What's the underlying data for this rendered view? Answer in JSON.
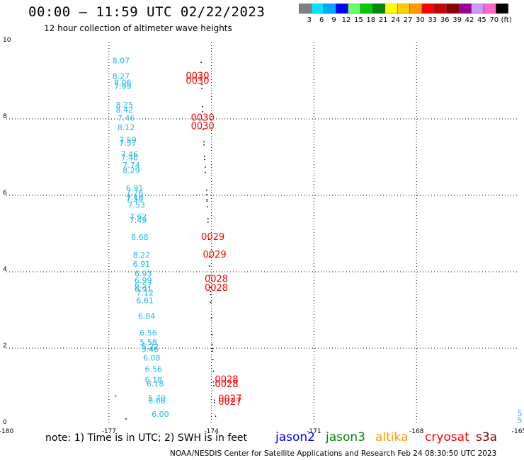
{
  "title": "00:00 – 11:59 UTC 02/22/2023",
  "subtitle": "12 hour collection of altimeter wave heights",
  "colorbar": {
    "ticks": [
      "3",
      "6",
      "9",
      "12",
      "15",
      "18",
      "21",
      "24",
      "27",
      "30",
      "33",
      "36",
      "39",
      "42",
      "45",
      "70",
      "(ft)"
    ],
    "colors": [
      "#808080",
      "#00e5ff",
      "#00aaff",
      "#0000ff",
      "#66ff66",
      "#00cc00",
      "#008800",
      "#ffff00",
      "#ffcc00",
      "#ff9900",
      "#ff0000",
      "#cc0000",
      "#880000",
      "#990099",
      "#cc99ff",
      "#ff66cc",
      "#000000"
    ]
  },
  "note": "note: 1) Time is in UTC; 2) SWH is in feet",
  "satellites": [
    {
      "name": "jason2",
      "color": "#0000ff"
    },
    {
      "name": "jason3",
      "color": "#008800"
    },
    {
      "name": "altika",
      "color": "#ff9900"
    },
    {
      "name": "cryosat",
      "color": "#ff0000"
    },
    {
      "name": "s3a",
      "color": "#880000"
    }
  ],
  "credit": "NOAA/NESDIS Center for Satellite Applications and Research   Feb 24 08:30:50 UTC 2023",
  "chart_data": {
    "type": "scatter",
    "xlim": [
      -180,
      -165
    ],
    "ylim": [
      0,
      10
    ],
    "x_ticks": [
      "-180",
      "-177",
      "-174",
      "-171",
      "-168",
      "-165"
    ],
    "y_ticks": [
      "0",
      "2",
      "4",
      "6",
      "8",
      "10"
    ],
    "grid": true,
    "wave_height_labels": [
      {
        "text": "8.07",
        "x": -176.9,
        "y": 9.45
      },
      {
        "text": "8.27",
        "x": -176.9,
        "y": 9.05
      },
      {
        "text": "8.06",
        "x": -176.85,
        "y": 8.88
      },
      {
        "text": "7.99",
        "x": -176.85,
        "y": 8.78
      },
      {
        "text": "8.25",
        "x": -176.8,
        "y": 8.3
      },
      {
        "text": "8.42",
        "x": -176.8,
        "y": 8.17
      },
      {
        "text": "7.46",
        "x": -176.75,
        "y": 7.95
      },
      {
        "text": "8.12",
        "x": -176.75,
        "y": 7.7
      },
      {
        "text": "7.59",
        "x": -176.7,
        "y": 7.38
      },
      {
        "text": "7.57",
        "x": -176.7,
        "y": 7.3
      },
      {
        "text": "7.46",
        "x": -176.65,
        "y": 7.0
      },
      {
        "text": "7.40",
        "x": -176.65,
        "y": 6.92
      },
      {
        "text": "7.74",
        "x": -176.6,
        "y": 6.72
      },
      {
        "text": "8.29",
        "x": -176.6,
        "y": 6.58
      },
      {
        "text": "6.91",
        "x": -176.5,
        "y": 6.12
      },
      {
        "text": "7.76",
        "x": -176.5,
        "y": 6.0
      },
      {
        "text": "7.19",
        "x": -176.5,
        "y": 5.87
      },
      {
        "text": "7.50",
        "x": -176.5,
        "y": 5.83
      },
      {
        "text": "7.53",
        "x": -176.45,
        "y": 5.68
      },
      {
        "text": "7.62",
        "x": -176.4,
        "y": 5.37
      },
      {
        "text": "7.49",
        "x": -176.4,
        "y": 5.28
      },
      {
        "text": "8.68",
        "x": -176.35,
        "y": 4.83
      },
      {
        "text": "8.22",
        "x": -176.3,
        "y": 4.37
      },
      {
        "text": "6.91",
        "x": -176.3,
        "y": 4.13
      },
      {
        "text": "6.93",
        "x": -176.25,
        "y": 3.88
      },
      {
        "text": "6.99",
        "x": -176.25,
        "y": 3.7
      },
      {
        "text": "6.57",
        "x": -176.25,
        "y": 3.57
      },
      {
        "text": "6.91",
        "x": -176.25,
        "y": 3.47
      },
      {
        "text": "7.12",
        "x": -176.2,
        "y": 3.38
      },
      {
        "text": "6.61",
        "x": -176.2,
        "y": 3.18
      },
      {
        "text": "6.84",
        "x": -176.15,
        "y": 2.77
      },
      {
        "text": "6.56",
        "x": -176.1,
        "y": 2.33
      },
      {
        "text": "5.58",
        "x": -176.1,
        "y": 2.08
      },
      {
        "text": "5.22",
        "x": -176.05,
        "y": 1.97
      },
      {
        "text": "5.46",
        "x": -176.05,
        "y": 1.9
      },
      {
        "text": "6.08",
        "x": -176.0,
        "y": 1.68
      },
      {
        "text": "6.56",
        "x": -175.95,
        "y": 1.38
      },
      {
        "text": "6.18",
        "x": -175.95,
        "y": 1.1
      },
      {
        "text": "6.18",
        "x": -175.9,
        "y": 1.0
      },
      {
        "text": "5.70",
        "x": -175.85,
        "y": 0.62
      },
      {
        "text": "6.06",
        "x": -175.85,
        "y": 0.56
      },
      {
        "text": "6.00",
        "x": -175.75,
        "y": 0.2
      },
      {
        "text": "5",
        "x": -165.05,
        "y": 0.22
      },
      {
        "text": "5",
        "x": -165.05,
        "y": 0.05
      }
    ],
    "time_labels": [
      {
        "text": "0030",
        "x": -174.75,
        "y": 9.05
      },
      {
        "text": "0030",
        "x": -174.75,
        "y": 8.92
      },
      {
        "text": "0030",
        "x": -174.6,
        "y": 7.95
      },
      {
        "text": "0030",
        "x": -174.6,
        "y": 7.73
      },
      {
        "text": "0029",
        "x": -174.3,
        "y": 4.83
      },
      {
        "text": "0029",
        "x": -174.25,
        "y": 4.37
      },
      {
        "text": "0028",
        "x": -174.2,
        "y": 3.73
      },
      {
        "text": "0028",
        "x": -174.2,
        "y": 3.5
      },
      {
        "text": "0028",
        "x": -173.9,
        "y": 1.1
      },
      {
        "text": "0028",
        "x": -173.9,
        "y": 0.98
      },
      {
        "text": "0027",
        "x": -173.8,
        "y": 0.6
      },
      {
        "text": "0027",
        "x": -173.8,
        "y": 0.52
      }
    ],
    "points": [
      {
        "x": -174.3,
        "y": 9.48
      },
      {
        "x": -174.3,
        "y": 9.08
      },
      {
        "x": -174.28,
        "y": 8.9
      },
      {
        "x": -174.28,
        "y": 8.8
      },
      {
        "x": -174.26,
        "y": 8.32
      },
      {
        "x": -174.26,
        "y": 8.19
      },
      {
        "x": -174.24,
        "y": 7.97
      },
      {
        "x": -174.24,
        "y": 7.72
      },
      {
        "x": -174.22,
        "y": 7.4
      },
      {
        "x": -174.22,
        "y": 7.32
      },
      {
        "x": -174.2,
        "y": 7.02
      },
      {
        "x": -174.2,
        "y": 6.94
      },
      {
        "x": -174.18,
        "y": 6.74
      },
      {
        "x": -174.18,
        "y": 6.6
      },
      {
        "x": -174.14,
        "y": 6.14
      },
      {
        "x": -174.14,
        "y": 6.02
      },
      {
        "x": -174.13,
        "y": 5.89
      },
      {
        "x": -174.13,
        "y": 5.85
      },
      {
        "x": -174.12,
        "y": 5.7
      },
      {
        "x": -174.1,
        "y": 5.39
      },
      {
        "x": -174.1,
        "y": 5.3
      },
      {
        "x": -174.08,
        "y": 4.85
      },
      {
        "x": -174.06,
        "y": 4.39
      },
      {
        "x": -174.06,
        "y": 4.15
      },
      {
        "x": -174.04,
        "y": 3.9
      },
      {
        "x": -174.04,
        "y": 3.72
      },
      {
        "x": -174.03,
        "y": 3.59
      },
      {
        "x": -174.03,
        "y": 3.49
      },
      {
        "x": -174.02,
        "y": 3.4
      },
      {
        "x": -174.02,
        "y": 3.2
      },
      {
        "x": -174.0,
        "y": 2.79
      },
      {
        "x": -173.98,
        "y": 2.35
      },
      {
        "x": -173.98,
        "y": 2.1
      },
      {
        "x": -173.97,
        "y": 1.99
      },
      {
        "x": -173.97,
        "y": 1.92
      },
      {
        "x": -173.96,
        "y": 1.7
      },
      {
        "x": -173.94,
        "y": 1.4
      },
      {
        "x": -173.94,
        "y": 1.12
      },
      {
        "x": -173.93,
        "y": 1.02
      },
      {
        "x": -173.91,
        "y": 0.64
      },
      {
        "x": -173.91,
        "y": 0.58
      },
      {
        "x": -173.88,
        "y": 0.22
      },
      {
        "x": -176.8,
        "y": 0.75
      },
      {
        "x": -176.5,
        "y": 0.15
      }
    ]
  }
}
